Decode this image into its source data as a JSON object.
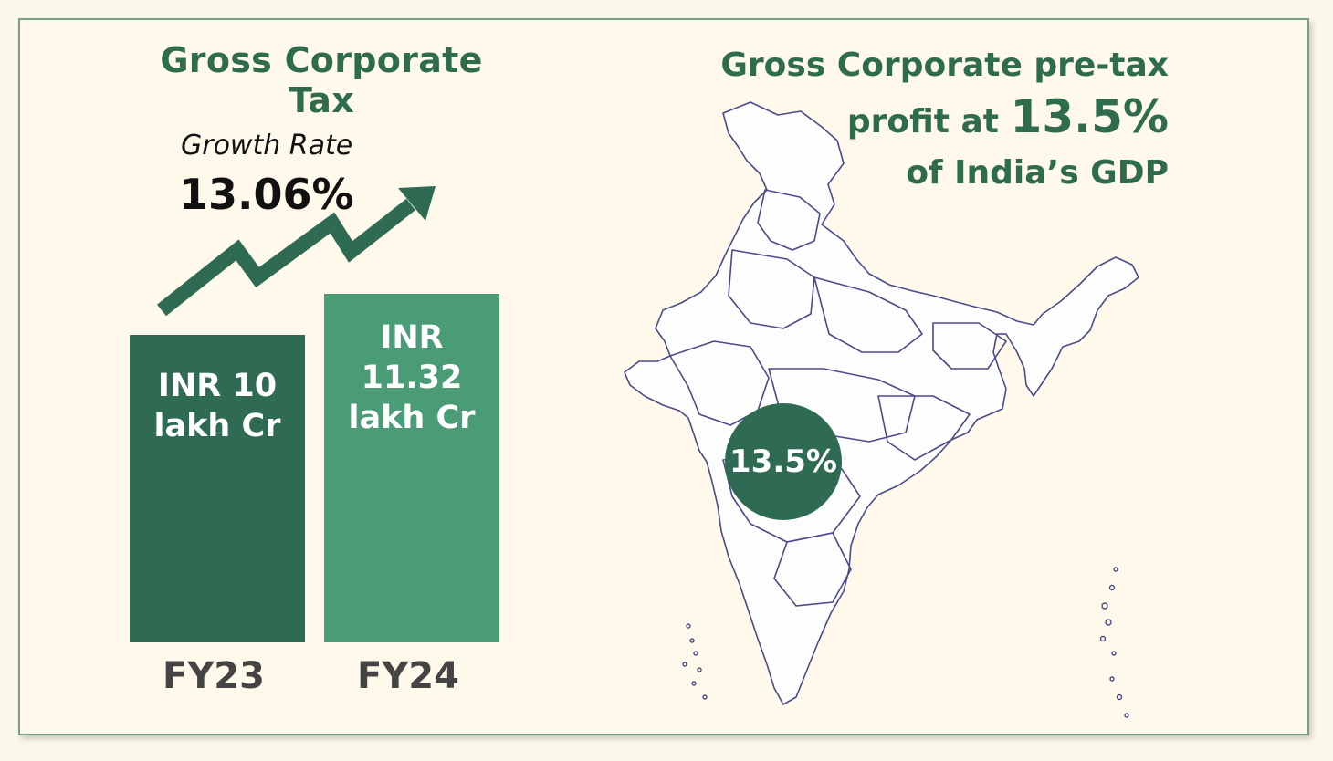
{
  "colors": {
    "dark_green": "#2e6b52",
    "light_green": "#4a9c77",
    "title_green": "#2f6b4d",
    "background": "#fef9ea",
    "map_outline": "#4c4a8c"
  },
  "left": {
    "title": "Gross Corporate Tax",
    "growth_label": "Growth Rate",
    "growth_value": "13.06%",
    "arrow_icon": "trend-up-arrow"
  },
  "chart_data": {
    "type": "bar",
    "title": "Gross Corporate Tax",
    "categories": [
      "FY23",
      "FY24"
    ],
    "values": [
      10,
      11.32
    ],
    "value_labels": [
      "INR 10 lakh Cr",
      "INR 11.32 lakh Cr"
    ],
    "units": "lakh Cr"
  },
  "right": {
    "title_line1": "Gross Corporate pre-tax",
    "title_line2_prefix": "profit at ",
    "title_line2_value": "13.5%",
    "title_line3": "of India’s GDP",
    "map_icon": "india-map",
    "circle_value": "13.5%"
  }
}
